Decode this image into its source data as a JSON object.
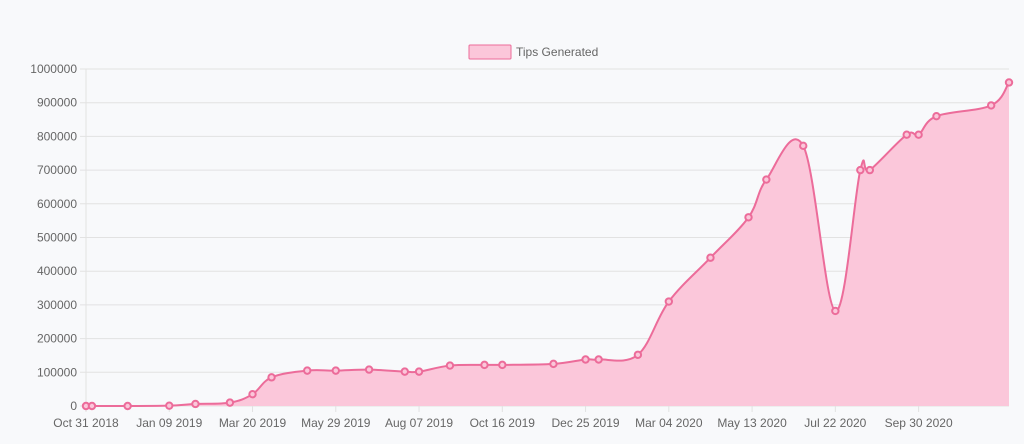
{
  "chart_data": {
    "type": "area",
    "legend": {
      "label": "Tips Generated",
      "position": "top-center"
    },
    "colors": {
      "fill": "#fbc7da",
      "line": "#ec6c9a",
      "point": "#ec6c9a",
      "legend_fill": "#fbc7da",
      "legend_border": "#ec6c9a",
      "grid": "#e2e2e2",
      "tick_text": "#666666"
    },
    "grid": true,
    "ylim": [
      0,
      1000000
    ],
    "y_ticks": [
      "0",
      "100000",
      "200000",
      "300000",
      "400000",
      "500000",
      "600000",
      "700000",
      "800000",
      "900000",
      "1000000"
    ],
    "x_tick_labels": [
      "Oct 31 2018",
      "Jan 09 2019",
      "Mar 20 2019",
      "May 29 2019",
      "Aug 07 2019",
      "Oct 16 2019",
      "Dec 25 2019",
      "Mar 04 2020",
      "May 13 2020",
      "Jul 22 2020",
      "Sep 30 2020"
    ],
    "x": [
      "2018-10-31",
      "2018-11-05",
      "2018-12-05",
      "2019-01-09",
      "2019-01-31",
      "2019-03-01",
      "2019-03-20",
      "2019-04-05",
      "2019-05-05",
      "2019-05-29",
      "2019-06-26",
      "2019-07-26",
      "2019-08-07",
      "2019-09-02",
      "2019-10-01",
      "2019-10-16",
      "2019-11-28",
      "2019-12-25",
      "2020-01-05",
      "2020-02-07",
      "2020-03-04",
      "2020-04-08",
      "2020-05-10",
      "2020-05-25",
      "2020-06-25",
      "2020-07-22",
      "2020-08-12",
      "2020-08-20",
      "2020-09-20",
      "2020-09-30",
      "2020-10-15",
      "2020-11-30",
      "2020-12-15"
    ],
    "series": [
      {
        "name": "Tips Generated",
        "values": [
          0,
          0,
          0,
          1000,
          6000,
          10000,
          35000,
          85000,
          105000,
          105000,
          108000,
          102000,
          102000,
          120000,
          122000,
          122000,
          125000,
          138000,
          138000,
          152000,
          310000,
          440000,
          560000,
          672000,
          772000,
          282000,
          700000,
          700000,
          805000,
          805000,
          860000,
          892000,
          960000
        ]
      }
    ]
  }
}
